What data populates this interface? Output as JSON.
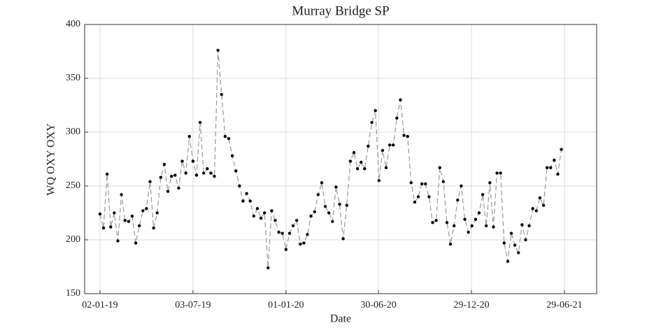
{
  "chart_data": {
    "type": "line",
    "title": "Murray Bridge SP",
    "xlabel": "Date",
    "ylabel": "WQ OXY OXY",
    "x": [
      "2019-01-02",
      "2019-01-09",
      "2019-01-16",
      "2019-01-23",
      "2019-01-30",
      "2019-02-06",
      "2019-02-13",
      "2019-02-20",
      "2019-02-27",
      "2019-03-06",
      "2019-03-13",
      "2019-03-20",
      "2019-03-27",
      "2019-04-03",
      "2019-04-10",
      "2019-04-17",
      "2019-04-24",
      "2019-05-01",
      "2019-05-08",
      "2019-05-15",
      "2019-05-22",
      "2019-05-29",
      "2019-06-05",
      "2019-06-12",
      "2019-06-19",
      "2019-06-26",
      "2019-07-03",
      "2019-07-10",
      "2019-07-17",
      "2019-07-24",
      "2019-07-31",
      "2019-08-07",
      "2019-08-14",
      "2019-08-21",
      "2019-08-28",
      "2019-09-04",
      "2019-09-11",
      "2019-09-18",
      "2019-09-25",
      "2019-10-02",
      "2019-10-09",
      "2019-10-16",
      "2019-10-23",
      "2019-10-30",
      "2019-11-06",
      "2019-11-13",
      "2019-11-20",
      "2019-11-27",
      "2019-12-04",
      "2019-12-11",
      "2019-12-18",
      "2019-12-25",
      "2020-01-01",
      "2020-01-08",
      "2020-01-15",
      "2020-01-22",
      "2020-01-29",
      "2020-02-05",
      "2020-02-12",
      "2020-02-19",
      "2020-02-26",
      "2020-03-04",
      "2020-03-11",
      "2020-03-18",
      "2020-03-25",
      "2020-04-01",
      "2020-04-08",
      "2020-04-15",
      "2020-04-22",
      "2020-04-29",
      "2020-05-06",
      "2020-05-13",
      "2020-05-20",
      "2020-05-27",
      "2020-06-03",
      "2020-06-10",
      "2020-06-17",
      "2020-06-24",
      "2020-07-01",
      "2020-07-08",
      "2020-07-15",
      "2020-07-22",
      "2020-07-29",
      "2020-08-05",
      "2020-08-12",
      "2020-08-19",
      "2020-08-26",
      "2020-09-02",
      "2020-09-09",
      "2020-09-16",
      "2020-09-23",
      "2020-09-30",
      "2020-10-07",
      "2020-10-14",
      "2020-10-21",
      "2020-10-28",
      "2020-11-04",
      "2020-11-11",
      "2020-11-18",
      "2020-11-25",
      "2020-12-02",
      "2020-12-09",
      "2020-12-16",
      "2020-12-23",
      "2020-12-30",
      "2021-01-06",
      "2021-01-13",
      "2021-01-20",
      "2021-01-27",
      "2021-02-03",
      "2021-02-10",
      "2021-02-17",
      "2021-02-24",
      "2021-03-03",
      "2021-03-10",
      "2021-03-17",
      "2021-03-24",
      "2021-03-31",
      "2021-04-07",
      "2021-04-14",
      "2021-04-21",
      "2021-04-28",
      "2021-05-05",
      "2021-05-12",
      "2021-05-19",
      "2021-05-26",
      "2021-06-02",
      "2021-06-09",
      "2021-06-16",
      "2021-06-23"
    ],
    "series": [
      {
        "name": "WQ OXY OXY",
        "color": "#000000",
        "line_color": "#999999",
        "values": [
          224,
          211,
          261,
          212,
          225,
          199,
          242,
          218,
          217,
          222,
          197,
          213,
          227,
          229,
          254,
          211,
          225,
          258,
          270,
          245,
          259,
          260,
          248,
          273,
          262,
          296,
          273,
          260,
          309,
          262,
          266,
          262,
          259,
          376,
          335,
          296,
          294,
          278,
          264,
          250,
          236,
          243,
          236,
          222,
          229,
          220,
          225,
          174,
          227,
          218,
          207,
          206,
          191,
          206,
          213,
          218,
          196,
          197,
          205,
          222,
          226,
          242,
          253,
          231,
          225,
          217,
          249,
          233,
          201,
          232,
          273,
          281,
          266,
          272,
          266,
          287,
          309,
          320,
          255,
          283,
          267,
          288,
          288,
          313,
          330,
          297,
          296,
          253,
          235,
          240,
          252,
          252,
          240,
          216,
          218,
          267,
          254,
          216,
          196,
          213,
          237,
          250,
          219,
          207,
          213,
          219,
          225,
          242,
          213,
          253,
          212,
          262,
          262,
          197,
          180,
          206,
          195,
          188,
          214,
          200,
          213,
          229,
          227,
          239,
          232,
          267,
          267,
          274,
          261,
          284
        ]
      }
    ],
    "xlim": [
      "2018-12-03",
      "2021-08-31"
    ],
    "xticks": [
      {
        "value": "2019-01-02",
        "label": "02-01-19"
      },
      {
        "value": "2019-07-03",
        "label": "03-07-19"
      },
      {
        "value": "2020-01-01",
        "label": "01-01-20"
      },
      {
        "value": "2020-06-30",
        "label": "30-06-20"
      },
      {
        "value": "2020-12-29",
        "label": "29-12-20"
      },
      {
        "value": "2021-06-29",
        "label": "29-06-21"
      }
    ],
    "ylim": [
      150,
      400
    ],
    "yticks": [
      150,
      200,
      250,
      300,
      350,
      400
    ],
    "grid": true
  }
}
